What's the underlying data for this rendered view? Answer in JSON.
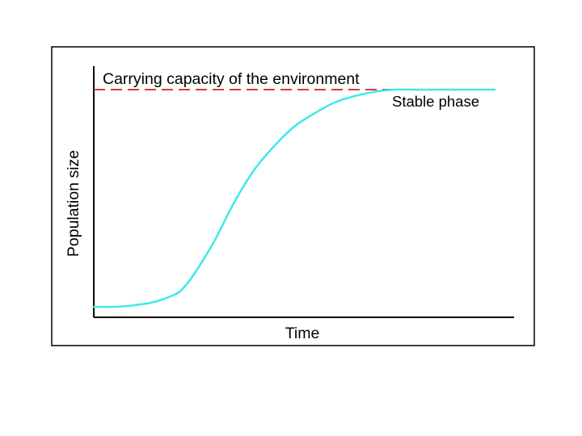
{
  "chart_data": {
    "type": "line",
    "title": "",
    "xlabel": "Time",
    "ylabel": "Population size",
    "xlim": [
      0,
      100
    ],
    "ylim": [
      0,
      100
    ],
    "grid": false,
    "legend": "none",
    "series": [
      {
        "name": "",
        "color": "#40e8e8",
        "style": "solid",
        "x": [
          0,
          5,
          10,
          15,
          20,
          22,
          25,
          30,
          35,
          40,
          45,
          50,
          55,
          60,
          65,
          70,
          75,
          80,
          85,
          90,
          95,
          100
        ],
        "y": [
          0,
          0,
          0.7,
          2.2,
          5.5,
          8,
          15,
          30,
          48,
          63,
          74,
          83,
          89,
          94,
          97,
          99,
          100,
          100,
          100,
          100,
          100,
          100
        ]
      }
    ],
    "reference_line": {
      "label": "Carrying capacity of the environment",
      "y": 100,
      "color": "#cc2222",
      "style": "dashed",
      "x_range": [
        0,
        75
      ]
    },
    "annotations": [
      {
        "text": "Stable phase"
      }
    ]
  }
}
